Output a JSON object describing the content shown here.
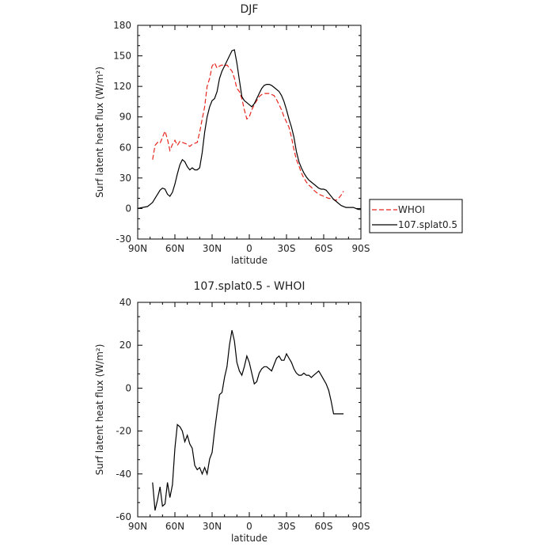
{
  "chart_data": [
    {
      "type": "line",
      "title": "DJF",
      "xlabel": "latitude",
      "ylabel": "Surf latent heat flux (W/m²)",
      "xlim": [
        90,
        -90
      ],
      "ylim": [
        -30,
        180
      ],
      "xticks": [
        90,
        60,
        30,
        0,
        -30,
        -60,
        -90
      ],
      "xtick_labels": [
        "90N",
        "60N",
        "30N",
        "0",
        "30S",
        "60S",
        "90S"
      ],
      "yticks": [
        -30,
        0,
        30,
        60,
        90,
        120,
        150,
        180
      ],
      "ytick_labels": [
        "-30",
        "0",
        "30",
        "60",
        "90",
        "120",
        "150",
        "180"
      ],
      "legend_position": "outside-right",
      "series": [
        {
          "name": "WHOI",
          "color": "#e8261f",
          "dash": "dashed",
          "x": [
            78,
            76,
            74,
            72,
            70,
            68,
            66,
            64,
            62,
            60,
            58,
            56,
            54,
            52,
            50,
            48,
            46,
            44,
            42,
            40,
            38,
            36,
            34,
            32,
            30,
            28,
            26,
            24,
            22,
            20,
            18,
            16,
            14,
            12,
            10,
            8,
            6,
            4,
            2,
            0,
            -2,
            -4,
            -6,
            -8,
            -10,
            -12,
            -14,
            -16,
            -18,
            -20,
            -22,
            -24,
            -26,
            -28,
            -30,
            -32,
            -34,
            -36,
            -38,
            -40,
            -42,
            -44,
            -46,
            -48,
            -50,
            -52,
            -54,
            -56,
            -58,
            -60,
            -62,
            -64,
            -66,
            -68,
            -70,
            -72,
            -74,
            -76
          ],
          "y": [
            48,
            62,
            65,
            64,
            70,
            76,
            68,
            57,
            63,
            67,
            62,
            66,
            65,
            64,
            63,
            61,
            63,
            64,
            65,
            75,
            88,
            100,
            120,
            128,
            140,
            143,
            138,
            140,
            141,
            140,
            141,
            138,
            135,
            128,
            118,
            115,
            108,
            97,
            88,
            90,
            97,
            102,
            106,
            110,
            112,
            113,
            113,
            113,
            112,
            111,
            107,
            102,
            97,
            90,
            85,
            80,
            70,
            58,
            48,
            42,
            35,
            30,
            26,
            23,
            21,
            18,
            16,
            14,
            13,
            12,
            11,
            10,
            10,
            9,
            8,
            10,
            13,
            17
          ]
        },
        {
          "name": "107.splat0.5",
          "color": "#000000",
          "dash": "solid",
          "x": [
            90,
            86,
            82,
            80,
            78,
            76,
            74,
            72,
            70,
            68,
            66,
            64,
            62,
            60,
            58,
            56,
            54,
            52,
            50,
            48,
            46,
            44,
            42,
            40,
            38,
            36,
            34,
            32,
            30,
            28,
            26,
            24,
            22,
            20,
            18,
            16,
            14,
            12,
            10,
            8,
            6,
            4,
            2,
            0,
            -2,
            -4,
            -6,
            -8,
            -10,
            -12,
            -14,
            -16,
            -18,
            -20,
            -22,
            -24,
            -26,
            -28,
            -30,
            -32,
            -34,
            -36,
            -38,
            -40,
            -42,
            -44,
            -46,
            -48,
            -50,
            -52,
            -54,
            -56,
            -58,
            -60,
            -62,
            -64,
            -66,
            -68,
            -70,
            -72,
            -74,
            -76,
            -78,
            -80,
            -82,
            -84,
            -86,
            -88,
            -90
          ],
          "y": [
            0,
            1,
            2,
            4,
            6,
            10,
            14,
            18,
            20,
            19,
            14,
            12,
            16,
            24,
            34,
            43,
            48,
            46,
            41,
            38,
            40,
            38,
            38,
            40,
            55,
            75,
            90,
            100,
            106,
            108,
            115,
            128,
            135,
            140,
            145,
            150,
            155,
            156,
            143,
            126,
            110,
            106,
            104,
            102,
            100,
            103,
            108,
            113,
            118,
            121,
            122,
            122,
            121,
            119,
            117,
            115,
            111,
            105,
            97,
            88,
            80,
            70,
            56,
            46,
            40,
            35,
            31,
            28,
            26,
            24,
            22,
            20,
            19,
            19,
            18,
            15,
            12,
            9,
            7,
            5,
            3,
            2,
            1,
            1,
            1,
            1,
            0,
            -1,
            -1
          ]
        }
      ]
    },
    {
      "type": "line",
      "title": "107.splat0.5 - WHOI",
      "xlabel": "latitude",
      "ylabel": "Surf latent heat flux (W/m²)",
      "xlim": [
        90,
        -90
      ],
      "ylim": [
        -60,
        40
      ],
      "xticks": [
        90,
        60,
        30,
        0,
        -30,
        -60,
        -90
      ],
      "xtick_labels": [
        "90N",
        "60N",
        "30N",
        "0",
        "30S",
        "60S",
        "90S"
      ],
      "yticks": [
        -60,
        -40,
        -20,
        0,
        20,
        40
      ],
      "ytick_labels": [
        "-60",
        "-40",
        "-20",
        "0",
        "20",
        "40"
      ],
      "series": [
        {
          "color": "#000000",
          "dash": "solid",
          "x": [
            78,
            76,
            74,
            72,
            70,
            68,
            66,
            64,
            62,
            60,
            58,
            56,
            54,
            52,
            50,
            48,
            46,
            44,
            42,
            40,
            38,
            36,
            34,
            32,
            30,
            28,
            26,
            24,
            22,
            20,
            18,
            16,
            14,
            12,
            10,
            8,
            6,
            4,
            2,
            0,
            -2,
            -4,
            -6,
            -8,
            -10,
            -12,
            -14,
            -16,
            -18,
            -20,
            -22,
            -24,
            -26,
            -28,
            -30,
            -32,
            -34,
            -36,
            -38,
            -40,
            -42,
            -44,
            -46,
            -48,
            -50,
            -52,
            -54,
            -56,
            -58,
            -60,
            -62,
            -64,
            -66,
            -68,
            -70,
            -72,
            -74,
            -76
          ],
          "y": [
            -44,
            -57,
            -52,
            -46,
            -55,
            -54,
            -44,
            -51,
            -45,
            -28,
            -17,
            -18,
            -20,
            -25,
            -22,
            -26,
            -28,
            -36,
            -38,
            -37,
            -40,
            -37,
            -40,
            -33,
            -30,
            -20,
            -11,
            -3,
            -2,
            5,
            10,
            20,
            27,
            22,
            12,
            8,
            6,
            10,
            15,
            12,
            7,
            2,
            3,
            7,
            9,
            10,
            10,
            9,
            8,
            11,
            14,
            15,
            13,
            13,
            16,
            14,
            12,
            9,
            7,
            6,
            6,
            7,
            6,
            6,
            5,
            6,
            7,
            8,
            6,
            4,
            2,
            -1,
            -6,
            -12,
            -12,
            -12,
            -12,
            -12
          ]
        }
      ]
    }
  ]
}
